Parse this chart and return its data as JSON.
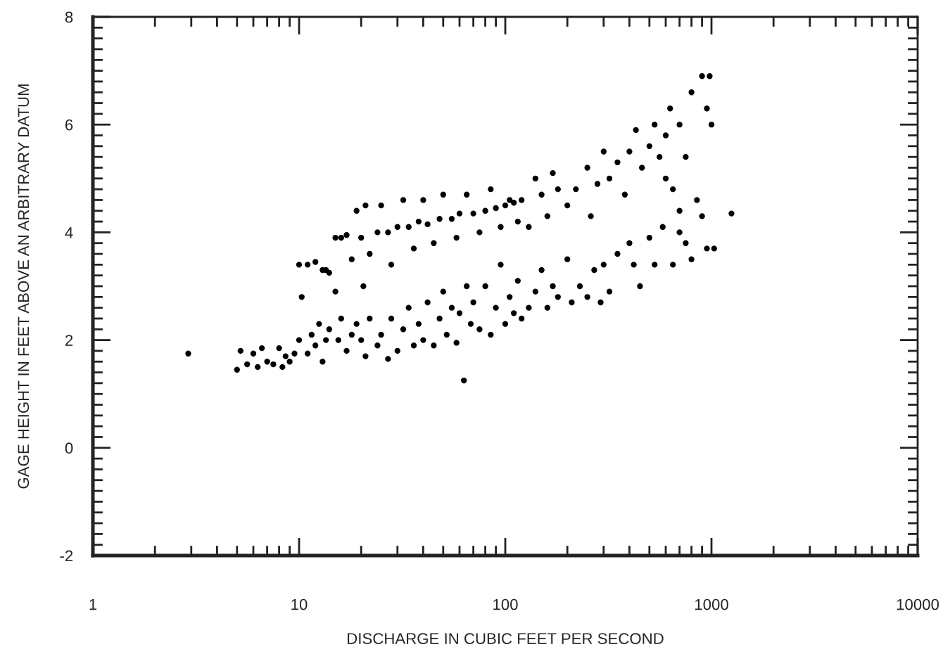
{
  "chart_data": {
    "type": "scatter",
    "xlabel": "DISCHARGE IN CUBIC FEET PER SECOND",
    "ylabel": "GAGE HEIGHT IN FEET ABOVE AN ARBITRARY DATUM",
    "log": "x",
    "xlim": [
      1,
      10000
    ],
    "xticks": [
      1,
      10,
      100,
      1000,
      10000
    ],
    "ylim": [
      -2,
      8
    ],
    "yticks": [
      -2,
      0,
      2,
      4,
      6,
      8
    ],
    "grid": false,
    "marker": "circle",
    "series": [
      {
        "color": "#000000",
        "x": [
          2.9,
          5,
          5.2,
          5.6,
          6,
          6.3,
          6.6,
          7,
          7.5,
          8,
          8.3,
          8.6,
          9,
          9.5,
          10,
          10.3,
          11,
          11.5,
          12,
          12.5,
          13,
          13.5,
          14,
          15,
          15.5,
          16,
          17,
          18,
          19,
          20,
          20.5,
          21,
          22,
          24,
          25,
          27,
          28,
          30,
          32,
          34,
          36,
          38,
          40,
          42,
          45,
          48,
          50,
          52,
          55,
          58,
          60,
          63,
          65,
          68,
          70,
          75,
          80,
          85,
          90,
          95,
          100,
          105,
          110,
          115,
          120,
          130,
          140,
          150,
          160,
          170,
          180,
          200,
          210,
          230,
          250,
          270,
          290,
          300,
          320,
          350,
          400,
          420,
          450,
          500,
          530,
          580,
          650,
          700,
          750,
          800,
          900,
          950,
          1030,
          1250,
          10,
          11,
          12,
          13,
          13.5,
          14,
          15,
          16,
          17,
          18,
          19,
          20,
          21,
          22,
          24,
          25,
          27,
          28,
          30,
          32,
          34,
          36,
          38,
          40,
          42,
          45,
          48,
          50,
          55,
          58,
          60,
          65,
          70,
          75,
          80,
          85,
          90,
          95,
          100,
          105,
          110,
          115,
          120,
          130,
          140,
          150,
          160,
          170,
          180,
          200,
          220,
          250,
          260,
          280,
          300,
          320,
          350,
          380,
          400,
          430,
          460,
          500,
          530,
          560,
          600,
          630,
          650,
          700,
          750,
          800,
          850,
          900,
          950,
          1000,
          980,
          600,
          700
        ],
        "values": [
          1.75,
          1.45,
          1.8,
          1.55,
          1.75,
          1.5,
          1.85,
          1.6,
          1.55,
          1.85,
          1.5,
          1.7,
          1.6,
          1.75,
          2.0,
          2.8,
          1.75,
          2.1,
          1.9,
          2.3,
          1.6,
          2.0,
          2.2,
          2.9,
          2.0,
          2.4,
          1.8,
          2.1,
          2.3,
          2.0,
          3.0,
          1.7,
          2.4,
          1.9,
          2.1,
          1.65,
          2.4,
          1.8,
          2.2,
          2.6,
          1.9,
          2.3,
          2.0,
          2.7,
          1.9,
          2.4,
          2.9,
          2.1,
          2.6,
          1.95,
          2.5,
          1.25,
          3.0,
          2.3,
          2.7,
          2.2,
          3.0,
          2.1,
          2.6,
          3.4,
          2.3,
          2.8,
          2.5,
          3.1,
          2.4,
          2.6,
          2.9,
          3.3,
          2.6,
          3.0,
          2.8,
          3.5,
          2.7,
          3.0,
          2.8,
          3.3,
          2.7,
          3.4,
          2.9,
          3.6,
          3.8,
          3.4,
          3.0,
          3.9,
          3.4,
          4.1,
          3.4,
          4.0,
          3.8,
          3.5,
          4.3,
          3.7,
          3.7,
          4.35,
          3.4,
          3.4,
          3.45,
          3.3,
          3.3,
          3.25,
          3.9,
          3.9,
          3.95,
          3.5,
          4.4,
          3.9,
          4.5,
          3.6,
          4.0,
          4.5,
          4.0,
          3.4,
          4.1,
          4.6,
          4.1,
          3.7,
          4.2,
          4.6,
          4.15,
          3.8,
          4.25,
          4.7,
          4.25,
          3.9,
          4.35,
          4.7,
          4.35,
          4.0,
          4.4,
          4.8,
          4.45,
          4.1,
          4.5,
          4.6,
          4.55,
          4.2,
          4.6,
          4.1,
          5.0,
          4.7,
          4.3,
          5.1,
          4.8,
          4.5,
          4.8,
          5.2,
          4.3,
          4.9,
          5.5,
          5.0,
          5.3,
          4.7,
          5.5,
          5.9,
          5.2,
          5.6,
          6.0,
          5.4,
          5.8,
          6.3,
          4.8,
          6.0,
          5.4,
          6.6,
          4.6,
          6.9,
          6.3,
          6.0,
          6.9,
          5.0,
          4.4
        ]
      }
    ]
  }
}
